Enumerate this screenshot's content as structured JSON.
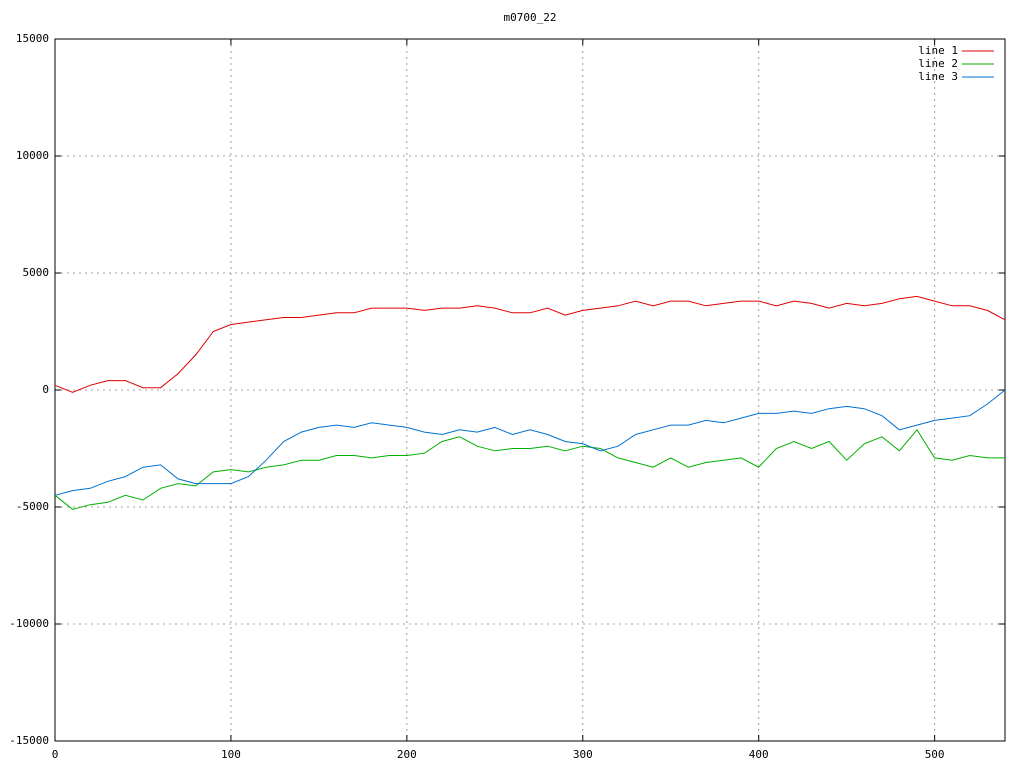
{
  "chart_data": {
    "type": "line",
    "title": "m0700_22",
    "x": [
      0,
      10,
      20,
      30,
      40,
      50,
      60,
      70,
      80,
      90,
      100,
      110,
      120,
      130,
      140,
      150,
      160,
      170,
      180,
      190,
      200,
      210,
      220,
      230,
      240,
      250,
      260,
      270,
      280,
      290,
      300,
      310,
      320,
      330,
      340,
      350,
      360,
      370,
      380,
      390,
      400,
      410,
      420,
      430,
      440,
      450,
      460,
      470,
      480,
      490,
      500,
      510,
      520,
      530,
      540
    ],
    "series": [
      {
        "name": "line 1",
        "color": "#e00000",
        "values": [
          200,
          -100,
          200,
          400,
          400,
          100,
          100,
          700,
          1500,
          2500,
          2800,
          2900,
          3000,
          3100,
          3100,
          3200,
          3300,
          3300,
          3500,
          3500,
          3500,
          3400,
          3500,
          3500,
          3600,
          3500,
          3300,
          3300,
          3500,
          3200,
          3400,
          3500,
          3600,
          3800,
          3600,
          3800,
          3800,
          3600,
          3700,
          3800,
          3800,
          3600,
          3800,
          3700,
          3500,
          3700,
          3600,
          3700,
          3900,
          4000,
          3800,
          3600,
          3600,
          3400,
          3000
        ]
      },
      {
        "name": "line 2",
        "color": "#00b000",
        "values": [
          -4500,
          -5100,
          -4900,
          -4800,
          -4500,
          -4700,
          -4200,
          -4000,
          -4100,
          -3500,
          -3400,
          -3500,
          -3300,
          -3200,
          -3000,
          -3000,
          -2800,
          -2800,
          -2900,
          -2800,
          -2800,
          -2700,
          -2200,
          -2000,
          -2400,
          -2600,
          -2500,
          -2500,
          -2400,
          -2600,
          -2400,
          -2500,
          -2900,
          -3100,
          -3300,
          -2900,
          -3300,
          -3100,
          -3000,
          -2900,
          -3300,
          -2500,
          -2200,
          -2500,
          -2200,
          -3000,
          -2300,
          -2000,
          -2600,
          -1700,
          -2900,
          -3000,
          -2800,
          -2900,
          -2900
        ]
      },
      {
        "name": "line 3",
        "color": "#0070d0",
        "values": [
          -4500,
          -4300,
          -4200,
          -3900,
          -3700,
          -3300,
          -3200,
          -3800,
          -4000,
          -4000,
          -4000,
          -3700,
          -3000,
          -2200,
          -1800,
          -1600,
          -1500,
          -1600,
          -1400,
          -1500,
          -1600,
          -1800,
          -1900,
          -1700,
          -1800,
          -1600,
          -1900,
          -1700,
          -1900,
          -2200,
          -2300,
          -2600,
          -2400,
          -1900,
          -1700,
          -1500,
          -1500,
          -1300,
          -1400,
          -1200,
          -1000,
          -1000,
          -900,
          -1000,
          -800,
          -700,
          -800,
          -1100,
          -1700,
          -1500,
          -1300,
          -1200,
          -1100,
          -600,
          0
        ]
      }
    ],
    "xlim": [
      0,
      540
    ],
    "ylim": [
      -15000,
      15000
    ],
    "xticks": [
      0,
      100,
      200,
      300,
      400,
      500
    ],
    "yticks": [
      -15000,
      -10000,
      -5000,
      0,
      5000,
      10000,
      15000
    ],
    "grid": true,
    "legend": "top-right"
  }
}
